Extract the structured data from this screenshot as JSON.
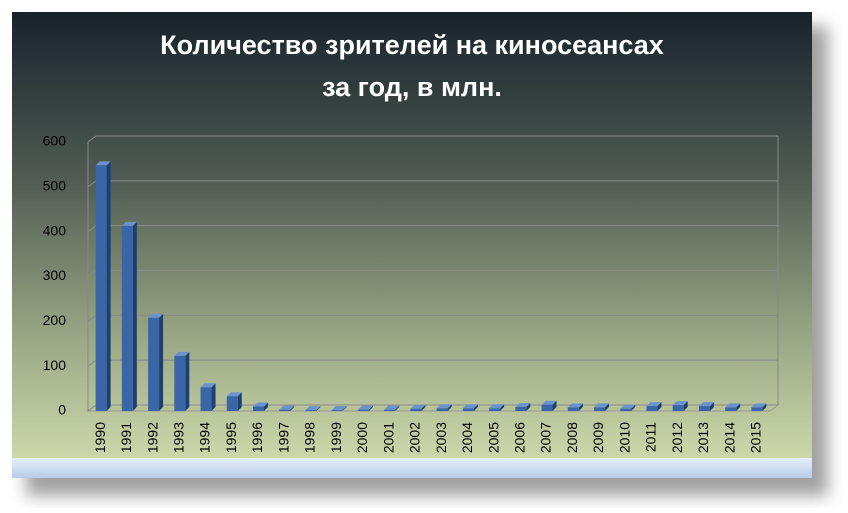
{
  "chart_data": {
    "type": "bar",
    "title": [
      "Количество зрителей на киносеансах",
      "за год, в млн."
    ],
    "categories": [
      "1990",
      "1991",
      "1992",
      "1993",
      "1994",
      "1995",
      "1996",
      "1997",
      "1998",
      "1999",
      "2000",
      "2001",
      "2002",
      "2003",
      "2004",
      "2005",
      "2006",
      "2007",
      "2008",
      "2009",
      "2010",
      "2011",
      "2012",
      "2013",
      "2014",
      "2015"
    ],
    "values": [
      548,
      413,
      208,
      123,
      53,
      33,
      10,
      3,
      2,
      2,
      3,
      3,
      5,
      6,
      6,
      6,
      9,
      14,
      8,
      8,
      5,
      11,
      13,
      11,
      8,
      8
    ],
    "color": "#3a66a8",
    "ylim": [
      0,
      600
    ],
    "yticks": [
      0,
      100,
      200,
      300,
      400,
      500,
      600
    ],
    "grid": true
  }
}
